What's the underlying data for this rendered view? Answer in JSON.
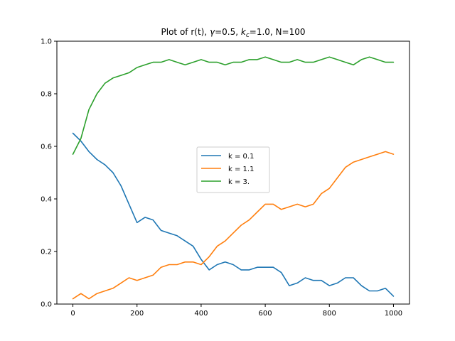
{
  "chart_data": {
    "type": "line",
    "title": {
      "prefix": "Plot of r(t), ",
      "gamma_symbol": "γ",
      "gamma_value": "=0.5, ",
      "k_symbol": "k",
      "k_subscript": "c",
      "k_value": "=1.0, N=100"
    },
    "xlabel": "",
    "ylabel": "",
    "xlim": [
      -50,
      1050
    ],
    "ylim": [
      0.0,
      1.0
    ],
    "xticks": [
      0,
      200,
      400,
      600,
      800,
      1000
    ],
    "yticks": [
      0.0,
      0.2,
      0.4,
      0.6,
      0.8,
      1.0
    ],
    "xtick_labels": [
      "0",
      "200",
      "400",
      "600",
      "800",
      "1000"
    ],
    "ytick_labels": [
      "0.0",
      "0.2",
      "0.4",
      "0.6",
      "0.8",
      "1.0"
    ],
    "grid": false,
    "legend_placement": "center",
    "legend_entries": [
      "k = 0.1",
      "k = 1.1",
      "k = 3."
    ],
    "series": [
      {
        "name": "k = 0.1",
        "color": "#1f77b4",
        "x": [
          0,
          25,
          50,
          75,
          100,
          125,
          150,
          175,
          200,
          225,
          250,
          275,
          300,
          325,
          350,
          375,
          400,
          425,
          450,
          475,
          500,
          525,
          550,
          575,
          600,
          625,
          650,
          675,
          700,
          725,
          750,
          775,
          800,
          825,
          850,
          875,
          900,
          925,
          950,
          975,
          1000
        ],
        "y": [
          0.65,
          0.62,
          0.58,
          0.55,
          0.53,
          0.5,
          0.45,
          0.38,
          0.31,
          0.33,
          0.32,
          0.28,
          0.27,
          0.26,
          0.24,
          0.22,
          0.17,
          0.13,
          0.15,
          0.16,
          0.15,
          0.13,
          0.13,
          0.14,
          0.14,
          0.14,
          0.12,
          0.07,
          0.08,
          0.1,
          0.09,
          0.09,
          0.07,
          0.08,
          0.1,
          0.1,
          0.07,
          0.05,
          0.05,
          0.06,
          0.03
        ]
      },
      {
        "name": "k = 1.1",
        "color": "#ff7f0e",
        "x": [
          0,
          25,
          50,
          75,
          100,
          125,
          150,
          175,
          200,
          225,
          250,
          275,
          300,
          325,
          350,
          375,
          400,
          425,
          450,
          475,
          500,
          525,
          550,
          575,
          600,
          625,
          650,
          675,
          700,
          725,
          750,
          775,
          800,
          825,
          850,
          875,
          900,
          925,
          950,
          975,
          1000
        ],
        "y": [
          0.02,
          0.04,
          0.02,
          0.04,
          0.05,
          0.06,
          0.08,
          0.1,
          0.09,
          0.1,
          0.11,
          0.14,
          0.15,
          0.15,
          0.16,
          0.16,
          0.15,
          0.18,
          0.22,
          0.24,
          0.27,
          0.3,
          0.32,
          0.35,
          0.38,
          0.38,
          0.36,
          0.37,
          0.38,
          0.37,
          0.38,
          0.42,
          0.44,
          0.48,
          0.52,
          0.54,
          0.55,
          0.56,
          0.57,
          0.58,
          0.57
        ]
      },
      {
        "name": "k = 3.",
        "color": "#2ca02c",
        "x": [
          0,
          25,
          50,
          75,
          100,
          125,
          150,
          175,
          200,
          225,
          250,
          275,
          300,
          325,
          350,
          375,
          400,
          425,
          450,
          475,
          500,
          525,
          550,
          575,
          600,
          625,
          650,
          675,
          700,
          725,
          750,
          775,
          800,
          825,
          850,
          875,
          900,
          925,
          950,
          975,
          1000
        ],
        "y": [
          0.57,
          0.63,
          0.74,
          0.8,
          0.84,
          0.86,
          0.87,
          0.88,
          0.9,
          0.91,
          0.92,
          0.92,
          0.93,
          0.92,
          0.91,
          0.92,
          0.93,
          0.92,
          0.92,
          0.91,
          0.92,
          0.92,
          0.93,
          0.93,
          0.94,
          0.93,
          0.92,
          0.92,
          0.93,
          0.92,
          0.92,
          0.93,
          0.94,
          0.93,
          0.92,
          0.91,
          0.93,
          0.94,
          0.93,
          0.92,
          0.92
        ]
      }
    ]
  }
}
